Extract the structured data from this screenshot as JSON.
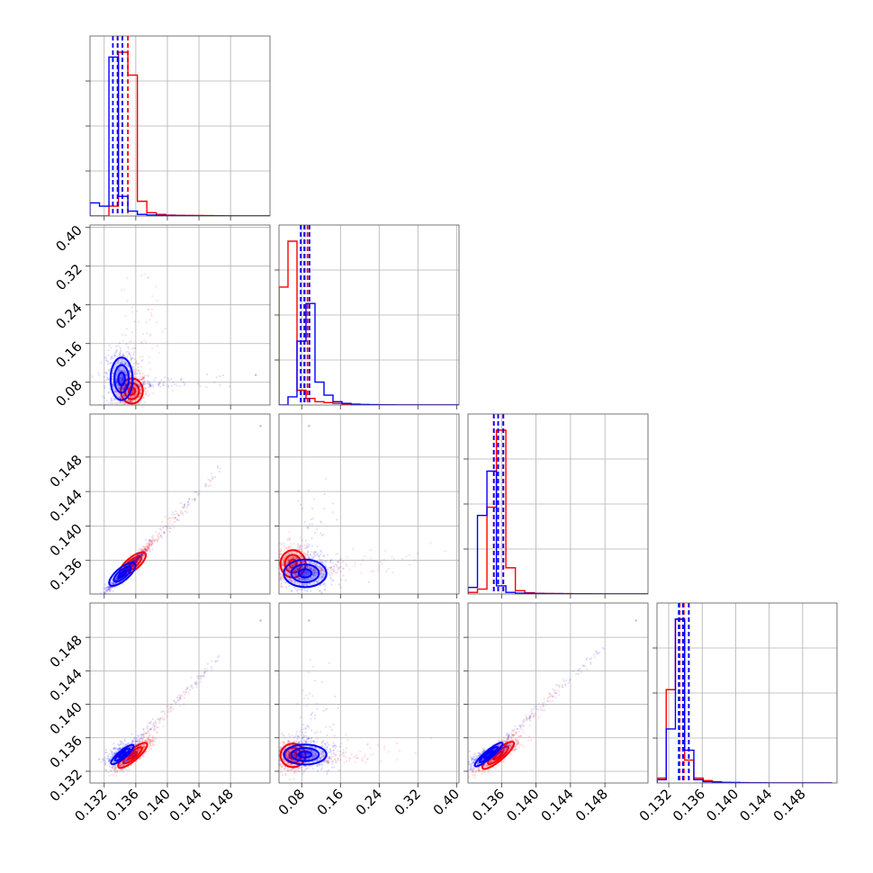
{
  "chart_data": {
    "type": "corner",
    "colors": {
      "red": "#ff0000",
      "blue": "#0000ff"
    },
    "grid": true,
    "series_colors": [
      "#ff0000",
      "#0000ff"
    ],
    "parameters": [
      {
        "range": [
          0.1302,
          0.153
        ],
        "ticks": [
          0.132,
          0.136,
          0.14,
          0.144,
          0.148
        ],
        "tick_labels": [
          "0.132",
          "0.136",
          "0.140",
          "0.144",
          "0.148"
        ]
      },
      {
        "range": [
          0.033,
          0.405
        ],
        "ticks": [
          0.08,
          0.16,
          0.24,
          0.32,
          0.4
        ],
        "tick_labels": [
          "0.08",
          "0.16",
          "0.24",
          "0.32",
          "0.40"
        ]
      },
      {
        "range": [
          0.1321,
          0.153
        ],
        "ticks": [
          0.136,
          0.14,
          0.144,
          0.148
        ],
        "tick_labels": [
          "0.136",
          "0.140",
          "0.144",
          "0.148"
        ]
      },
      {
        "range": [
          0.1306,
          0.1521
        ],
        "ticks": [
          0.132,
          0.136,
          0.14,
          0.144,
          0.148
        ],
        "tick_labels": [
          "0.132",
          "0.136",
          "0.140",
          "0.144",
          "0.148"
        ]
      }
    ],
    "histograms": [
      {
        "edges": [
          0.1302,
          0.1314,
          0.1326,
          0.1338,
          0.135,
          0.1362,
          0.1374,
          0.1386,
          0.1398,
          0.141,
          0.1422,
          0.1434,
          0.1446,
          0.1458,
          0.147,
          0.1482,
          0.1494,
          0.1506,
          0.1518,
          0.153
        ],
        "red": [
          0,
          0,
          0.06,
          1.0,
          0.86,
          0.09,
          0.02,
          0.01,
          0.005,
          0.004,
          0.003,
          0.003,
          0.002,
          0.001,
          0.001,
          0,
          0,
          0,
          0
        ],
        "blue": [
          0.08,
          0.06,
          0.97,
          0.12,
          0.03,
          0.01,
          0.006,
          0.004,
          0.003,
          0.002,
          0.002,
          0.001,
          0.001,
          0.001,
          0,
          0,
          0,
          0,
          0
        ],
        "red_quantiles": [
          0.1337,
          0.1343,
          0.135
        ],
        "blue_quantiles": [
          0.1331,
          0.1337,
          0.1343
        ]
      },
      {
        "edges": [
          0.033,
          0.0516,
          0.0702,
          0.0888,
          0.1074,
          0.126,
          0.1446,
          0.1632,
          0.1818,
          0.2004,
          0.219,
          0.2376,
          0.2562,
          0.2748,
          0.2934,
          0.312,
          0.3306,
          0.3492,
          0.3678,
          0.3864,
          0.405
        ],
        "red": [
          0.72,
          1.0,
          0.09,
          0.04,
          0.02,
          0.015,
          0.01,
          0.005,
          0.003,
          0.002,
          0.001,
          0.001,
          0,
          0,
          0,
          0,
          0,
          0,
          0,
          0
        ],
        "blue": [
          0,
          0.05,
          0.39,
          0.62,
          0.14,
          0.06,
          0.02,
          0.01,
          0.005,
          0.003,
          0.002,
          0.001,
          0.001,
          0,
          0,
          0,
          0,
          0,
          0,
          0
        ],
        "red_quantiles": [
          0.078,
          0.085,
          0.092
        ],
        "blue_quantiles": [
          0.078,
          0.086,
          0.096
        ]
      },
      {
        "edges": [
          0.1321,
          0.1332,
          0.1343,
          0.1354,
          0.1365,
          0.1376,
          0.1387,
          0.1398,
          0.1409,
          0.142,
          0.1431,
          0.1442,
          0.1453,
          0.1464,
          0.1475,
          0.1486,
          0.1497,
          0.1508,
          0.1519,
          0.153
        ],
        "red": [
          0.01,
          0.03,
          0.53,
          1.0,
          0.16,
          0.02,
          0.008,
          0.004,
          0.003,
          0.002,
          0.002,
          0.001,
          0.001,
          0.001,
          0,
          0,
          0,
          0,
          0
        ],
        "blue": [
          0.04,
          0.48,
          0.75,
          0.05,
          0.01,
          0.005,
          0.004,
          0.003,
          0.002,
          0.002,
          0.001,
          0.001,
          0.001,
          0,
          0,
          0,
          0,
          0,
          0
        ],
        "red_quantiles": [
          0.1351,
          0.1356,
          0.1362
        ],
        "blue_quantiles": [
          0.1351,
          0.1356,
          0.1362
        ]
      },
      {
        "edges": [
          0.1306,
          0.1317,
          0.1328,
          0.1339,
          0.135,
          0.1361,
          0.1372,
          0.1383,
          0.1394,
          0.1405,
          0.1416,
          0.1427,
          0.1438,
          0.1449,
          0.146,
          0.1471,
          0.1482,
          0.1493,
          0.1504,
          0.1515
        ],
        "red": [
          0.03,
          0.57,
          1.0,
          0.14,
          0.03,
          0.015,
          0.008,
          0.004,
          0.003,
          0.002,
          0.001,
          0.001,
          0,
          0,
          0,
          0,
          0,
          0,
          0
        ],
        "blue": [
          0.02,
          0.33,
          1.0,
          0.2,
          0.02,
          0.008,
          0.005,
          0.003,
          0.002,
          0.001,
          0.001,
          0.001,
          0,
          0,
          0,
          0,
          0,
          0,
          0
        ],
        "red_quantiles": [
          0.1333,
          0.1338,
          0.1344
        ],
        "blue_quantiles": [
          0.1332,
          0.1337,
          0.1344
        ]
      }
    ],
    "scatter_panels": [
      {
        "row": 1,
        "col": 0,
        "red": {
          "center": [
            0.1355,
            0.062
          ],
          "spread": [
            0.0007,
            0.013
          ],
          "rho": 0.0
        },
        "blue": {
          "center": [
            0.1342,
            0.087
          ],
          "spread": [
            0.0007,
            0.022
          ],
          "rho": 0.0
        },
        "red_tail_range": [
          [
            0.134,
            0.1395
          ],
          [
            0.06,
            0.32
          ]
        ],
        "blue_tail_range": [
          [
            0.133,
            0.1465
          ],
          [
            0.07,
            0.1
          ]
        ]
      },
      {
        "row": 2,
        "col": 0,
        "red": {
          "center": [
            0.1356,
            0.1356
          ],
          "spread": [
            0.0008,
            0.0008
          ],
          "rho": 0.97
        },
        "blue": {
          "center": [
            0.1343,
            0.1344
          ],
          "spread": [
            0.0008,
            0.0008
          ],
          "rho": 0.97
        },
        "red_tail_range": [
          [
            0.135,
            0.146
          ],
          [
            0.135,
            0.146
          ]
        ],
        "blue_tail_range": [
          [
            0.134,
            0.147
          ],
          [
            0.134,
            0.147
          ]
        ]
      },
      {
        "row": 2,
        "col": 1,
        "red": {
          "center": [
            0.062,
            0.1356
          ],
          "spread": [
            0.013,
            0.0008
          ],
          "rho": 0.0
        },
        "blue": {
          "center": [
            0.087,
            0.1345
          ],
          "spread": [
            0.022,
            0.0008
          ],
          "rho": 0.0
        },
        "red_tail_range": [
          [
            0.06,
            0.33
          ],
          [
            0.1345,
            0.1375
          ]
        ],
        "blue_tail_range": [
          [
            0.07,
            0.15
          ],
          [
            0.133,
            0.147
          ]
        ]
      },
      {
        "row": 3,
        "col": 0,
        "red": {
          "center": [
            0.1356,
            0.1339
          ],
          "spread": [
            0.0009,
            0.0007
          ],
          "rho": 0.9
        },
        "blue": {
          "center": [
            0.1343,
            0.134
          ],
          "spread": [
            0.0007,
            0.0005
          ],
          "rho": 0.5
        },
        "red_tail_range": [
          [
            0.135,
            0.146
          ],
          [
            0.134,
            0.145
          ]
        ],
        "blue_tail_range": [
          [
            0.134,
            0.147
          ],
          [
            0.1335,
            0.146
          ]
        ]
      },
      {
        "row": 3,
        "col": 1,
        "red": {
          "center": [
            0.062,
            0.1339
          ],
          "spread": [
            0.013,
            0.0007
          ],
          "rho": 0.0
        },
        "blue": {
          "center": [
            0.087,
            0.134
          ],
          "spread": [
            0.022,
            0.0006
          ],
          "rho": 0.0
        },
        "red_tail_range": [
          [
            0.06,
            0.33
          ],
          [
            0.133,
            0.136
          ]
        ],
        "blue_tail_range": [
          [
            0.07,
            0.15
          ],
          [
            0.133,
            0.146
          ]
        ]
      },
      {
        "row": 3,
        "col": 2,
        "red": {
          "center": [
            0.1356,
            0.1339
          ],
          "spread": [
            0.0009,
            0.0007
          ],
          "rho": 0.85
        },
        "blue": {
          "center": [
            0.1345,
            0.134
          ],
          "spread": [
            0.0008,
            0.0005
          ],
          "rho": 0.8
        },
        "red_tail_range": [
          [
            0.135,
            0.144
          ],
          [
            0.134,
            0.143
          ]
        ],
        "blue_tail_range": [
          [
            0.134,
            0.148
          ],
          [
            0.1335,
            0.147
          ]
        ]
      }
    ],
    "outliers": [
      {
        "row": 1,
        "col": 0,
        "color": "blue",
        "x": 0.1512,
        "y": 0.095
      },
      {
        "row": 2,
        "col": 0,
        "color": "blue",
        "x": 0.1518,
        "y": 0.1516
      },
      {
        "row": 2,
        "col": 1,
        "color": "blue",
        "x": 0.095,
        "y": 0.1516
      },
      {
        "row": 3,
        "col": 0,
        "color": "blue",
        "x": 0.1518,
        "y": 0.15
      },
      {
        "row": 3,
        "col": 1,
        "color": "blue",
        "x": 0.095,
        "y": 0.15
      },
      {
        "row": 3,
        "col": 2,
        "color": "blue",
        "x": 0.1516,
        "y": 0.15
      }
    ]
  }
}
